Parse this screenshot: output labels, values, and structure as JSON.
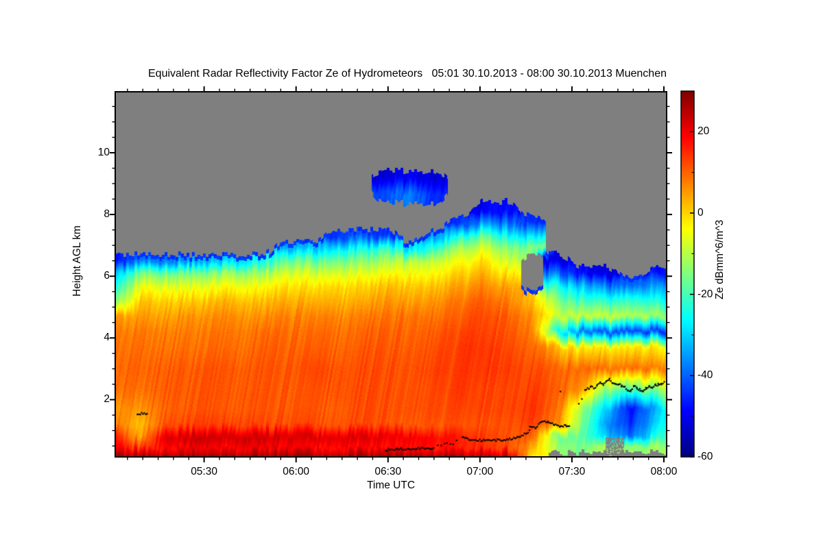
{
  "title": "Equivalent Radar Reflectivity Factor Ze of Hydrometeors   05:01 30.10.2013 - 08:00 30.10.2013 Muenchen",
  "plot": {
    "background_color": "#ffffff",
    "nodata_color": "#7f7f7f",
    "x_axis": {
      "label": "Time UTC",
      "tick_labels": [
        "05:30",
        "06:00",
        "06:30",
        "07:00",
        "07:30",
        "08:00"
      ],
      "tick_minutes": [
        30,
        60,
        90,
        120,
        150,
        180
      ],
      "minor_step_minutes": 5,
      "range_minutes": [
        1,
        180
      ],
      "range_label": [
        "05:01",
        "08:00"
      ]
    },
    "y_axis": {
      "label": "Height AGL km",
      "tick_labels": [
        "2",
        "4",
        "6",
        "8",
        "10"
      ],
      "ticks_km": [
        2,
        4,
        6,
        8,
        10
      ],
      "minor_step_km": 0.5,
      "range_km": [
        0.15,
        11.97
      ]
    },
    "colorbar": {
      "label": "Ze dBmm^6/m^3",
      "tick_labels": [
        "20",
        "0",
        "-20",
        "-40",
        "-60"
      ],
      "ticks": [
        20,
        0,
        -20,
        -40,
        -60
      ],
      "minor_ticks": [
        10,
        -10,
        -30,
        -50
      ],
      "range": [
        -60,
        30
      ],
      "colormap": "jet",
      "top_color": "#800000",
      "bottom_color": "#00007f"
    }
  },
  "chart_data": {
    "type": "heatmap",
    "title": "Equivalent Radar Reflectivity Factor Ze of Hydrometeors",
    "period": "05:01 30.10.2013 - 08:00 30.10.2013",
    "station": "Muenchen",
    "xlabel": "Time UTC",
    "ylabel": "Height AGL km",
    "value_label": "Ze dBmm^6/m^3",
    "value_range": [
      -60,
      30
    ],
    "x_unit": "minutes after 05:00 UTC",
    "x_minutes": [
      1,
      9,
      17,
      25,
      33,
      41,
      49,
      57,
      65,
      73,
      81,
      89,
      97,
      105,
      113,
      121,
      129,
      137,
      145,
      153,
      161,
      169,
      180
    ],
    "heights_km": [
      0.15,
      0.45,
      0.8,
      1.2,
      1.7,
      2.3,
      3.0,
      3.7,
      4.2,
      4.7,
      5.2,
      5.7,
      6.1,
      6.5,
      6.9,
      7.3,
      7.7,
      8.1,
      8.7,
      9.2,
      9.6,
      12.0
    ],
    "values_dbz": [
      [
        27,
        27,
        27,
        27,
        27,
        27,
        27,
        27,
        27,
        27,
        27,
        27,
        27,
        27,
        26,
        26,
        25,
        -2,
        null,
        null,
        null,
        null,
        null
      ],
      [
        20,
        14,
        18,
        19,
        19,
        19,
        19,
        19,
        18,
        18,
        18,
        18,
        18,
        17,
        16,
        15,
        13,
        4,
        -12,
        -16,
        -10,
        -14,
        -12
      ],
      [
        16,
        4,
        22,
        23,
        23,
        23,
        23,
        22,
        22,
        22,
        22,
        21,
        20,
        18,
        16,
        14,
        12,
        10,
        -15,
        -18,
        -30,
        -40,
        -20
      ],
      [
        8,
        2,
        12,
        13,
        13,
        13,
        12,
        12,
        12,
        12,
        12,
        12,
        11,
        11,
        11,
        12,
        12,
        13,
        8,
        -15,
        -35,
        -45,
        -25
      ],
      [
        6,
        6,
        10,
        11,
        11,
        11,
        11,
        11,
        11,
        11,
        12,
        12,
        12,
        12,
        12,
        13,
        13,
        14,
        10,
        -12,
        -30,
        -48,
        -28
      ],
      [
        9,
        9,
        11,
        11,
        11,
        11,
        11,
        11,
        11,
        12,
        12,
        12,
        12,
        12,
        13,
        13,
        13,
        13,
        11,
        6,
        -15,
        -20,
        -12
      ],
      [
        10,
        10,
        11,
        11,
        11,
        11,
        11,
        11,
        12,
        12,
        12,
        12,
        12,
        13,
        13,
        14,
        14,
        12,
        10,
        10,
        9,
        9,
        8
      ],
      [
        9,
        9,
        9,
        9,
        9,
        9,
        10,
        10,
        10,
        10,
        11,
        11,
        11,
        12,
        13,
        14,
        13,
        10,
        2,
        -2,
        -2,
        -2,
        -3
      ],
      [
        8,
        8,
        8,
        8,
        8,
        8,
        9,
        9,
        9,
        9,
        10,
        10,
        10,
        11,
        12,
        13,
        12,
        8,
        -25,
        -38,
        -42,
        -42,
        -45
      ],
      [
        5,
        5,
        5,
        6,
        6,
        6,
        6,
        7,
        7,
        7,
        8,
        8,
        9,
        9,
        10,
        12,
        11,
        6,
        -8,
        -8,
        -8,
        -10,
        -12
      ],
      [
        -15,
        1,
        1,
        1,
        2,
        2,
        2,
        3,
        3,
        3,
        4,
        5,
        5,
        6,
        8,
        10,
        8,
        2,
        -15,
        -20,
        -22,
        -22,
        -25
      ],
      [
        -25,
        -6,
        -6,
        -6,
        -5,
        -5,
        -4,
        -2,
        -2,
        -1,
        0,
        1,
        1,
        2,
        4,
        6,
        4,
        null,
        -25,
        -32,
        -38,
        -40,
        -35
      ],
      [
        -32,
        -16,
        -16,
        -15,
        -14,
        -13,
        -12,
        -8,
        -8,
        -7,
        -6,
        -5,
        -4,
        -3,
        0,
        2,
        -2,
        null,
        -40,
        -48,
        -52,
        null,
        -48
      ],
      [
        -48,
        -38,
        -38,
        -35,
        -32,
        -30,
        -25,
        -18,
        -18,
        -16,
        -14,
        -12,
        -10,
        -8,
        -5,
        -2,
        -8,
        null,
        -52,
        null,
        null,
        null,
        null
      ],
      [
        null,
        null,
        null,
        null,
        null,
        null,
        null,
        -35,
        -32,
        -28,
        -25,
        -22,
        -30,
        -20,
        -12,
        -8,
        -14,
        -15,
        null,
        null,
        null,
        null,
        null
      ],
      [
        null,
        null,
        null,
        null,
        null,
        null,
        null,
        null,
        null,
        -45,
        -40,
        -45,
        null,
        -35,
        -25,
        -18,
        -25,
        -30,
        null,
        null,
        null,
        null,
        null
      ],
      [
        null,
        null,
        null,
        null,
        null,
        null,
        null,
        null,
        null,
        null,
        null,
        null,
        null,
        null,
        -45,
        -35,
        -38,
        -45,
        null,
        null,
        null,
        null,
        null
      ],
      [
        null,
        null,
        null,
        null,
        null,
        null,
        null,
        null,
        null,
        null,
        null,
        null,
        null,
        null,
        null,
        -50,
        -48,
        null,
        null,
        null,
        null,
        null,
        null
      ],
      [
        null,
        null,
        null,
        null,
        null,
        null,
        null,
        null,
        null,
        null,
        null,
        -42,
        -38,
        -45,
        null,
        null,
        null,
        null,
        null,
        null,
        null,
        null,
        null
      ],
      [
        null,
        null,
        null,
        null,
        null,
        null,
        null,
        null,
        null,
        null,
        null,
        -52,
        -50,
        -52,
        null,
        null,
        null,
        null,
        null,
        null,
        null,
        null,
        null
      ],
      [
        null,
        null,
        null,
        null,
        null,
        null,
        null,
        null,
        null,
        null,
        null,
        null,
        null,
        null,
        null,
        null,
        null,
        null,
        null,
        null,
        null,
        null,
        null
      ],
      [
        null,
        null,
        null,
        null,
        null,
        null,
        null,
        null,
        null,
        null,
        null,
        null,
        null,
        null,
        null,
        null,
        null,
        null,
        null,
        null,
        null,
        null,
        null
      ]
    ],
    "melting_layer": {
      "color": "#000000",
      "description": "black dotted melting-layer / bright-band height markers",
      "segments": [
        {
          "style": "solid",
          "points": [
            [
              8,
              1.55
            ],
            [
              11.5,
              1.55
            ]
          ]
        },
        {
          "style": "solid",
          "points": [
            [
              89,
              0.36
            ],
            [
              93,
              0.42
            ],
            [
              97,
              0.38
            ],
            [
              101,
              0.44
            ],
            [
              105,
              0.4
            ]
          ]
        },
        {
          "style": "sparse",
          "points": [
            [
              106,
              0.5
            ],
            [
              109,
              0.62
            ],
            [
              111,
              0.58
            ],
            [
              113,
              0.78
            ]
          ]
        },
        {
          "style": "solid",
          "points": [
            [
              114,
              0.78
            ],
            [
              117,
              0.7
            ],
            [
              121,
              0.68
            ],
            [
              125,
              0.69
            ],
            [
              129,
              0.71
            ],
            [
              132,
              0.78
            ],
            [
              135,
              0.92
            ],
            [
              136,
              1.02
            ]
          ]
        },
        {
          "style": "solid",
          "points": [
            [
              136,
              1.12
            ],
            [
              138,
              1.1
            ],
            [
              140,
              1.3
            ],
            [
              142,
              1.28
            ],
            [
              144,
              1.2
            ],
            [
              146,
              1.14
            ],
            [
              148,
              1.16
            ],
            [
              149,
              1.12
            ]
          ]
        },
        {
          "style": "sparse",
          "points": [
            [
              146,
              2.25
            ],
            [
              146.5,
              2.27
            ]
          ]
        },
        {
          "style": "sparse",
          "points": [
            [
              152,
              1.9
            ],
            [
              153,
              2.05
            ],
            [
              154,
              2.18
            ]
          ]
        },
        {
          "style": "solid",
          "points": [
            [
              154,
              2.3
            ],
            [
              156,
              2.42
            ],
            [
              157,
              2.38
            ],
            [
              158,
              2.46
            ],
            [
              159,
              2.56
            ],
            [
              160,
              2.5
            ],
            [
              161,
              2.63
            ],
            [
              162,
              2.66
            ],
            [
              163,
              2.54
            ],
            [
              164,
              2.48
            ],
            [
              165,
              2.52
            ],
            [
              166,
              2.44
            ],
            [
              167,
              2.4
            ],
            [
              168,
              2.32
            ],
            [
              169,
              2.3
            ],
            [
              170,
              2.43
            ],
            [
              171,
              2.38
            ],
            [
              172,
              2.32
            ],
            [
              173,
              2.28
            ],
            [
              174,
              2.37
            ],
            [
              175,
              2.43
            ],
            [
              176,
              2.4
            ],
            [
              177,
              2.47
            ],
            [
              178,
              2.5
            ],
            [
              179,
              2.52
            ],
            [
              180,
              2.57
            ]
          ]
        }
      ]
    },
    "nodata_patches": [
      {
        "t_minutes": [
          161,
          167
        ],
        "h_km": [
          0.2,
          0.75
        ]
      }
    ]
  }
}
